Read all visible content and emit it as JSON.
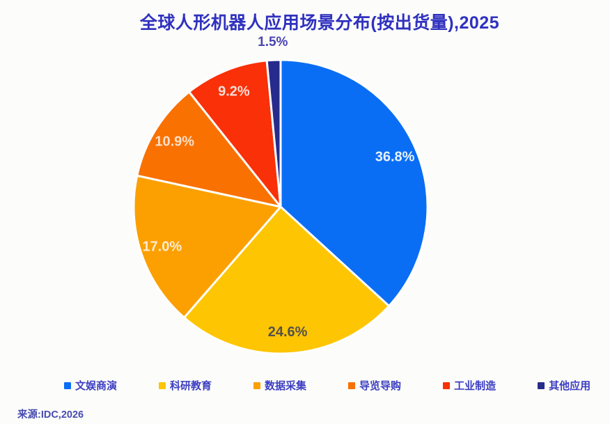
{
  "page": {
    "background_color": "#fcfcfa",
    "title_color": "#2f31bf",
    "legend_text_color": "#3c3ec2",
    "source_text": "来源:IDC,2026"
  },
  "chart_data": {
    "type": "pie",
    "title": "全球人形机器人应用场景分布(按出货量),2025",
    "start_angle_deg": 0,
    "direction": "clockwise",
    "legend_position": "bottom",
    "slice_border_color": "#ffffff",
    "slices": [
      {
        "label": "文娱商演",
        "value": 36.8,
        "display": "36.8%",
        "color": "#0a6ef5",
        "label_color": "#e9f2fc",
        "label_inside": true
      },
      {
        "label": "科研教育",
        "value": 24.6,
        "display": "24.6%",
        "color": "#fec502",
        "label_color": "#55514b",
        "label_inside": true
      },
      {
        "label": "数据采集",
        "value": 17.0,
        "display": "17.0%",
        "color": "#fba000",
        "label_color": "#fcebd0",
        "label_inside": true
      },
      {
        "label": "导览导购",
        "value": 10.9,
        "display": "10.9%",
        "color": "#f97100",
        "label_color": "#fcdfc8",
        "label_inside": true
      },
      {
        "label": "工业制造",
        "value": 9.2,
        "display": "9.2%",
        "color": "#f93008",
        "label_color": "#fbded6",
        "label_inside": true
      },
      {
        "label": "其他应用",
        "value": 1.5,
        "display": "1.5%",
        "color": "#272b8c",
        "label_color": "#4a44b0",
        "label_inside": false
      }
    ]
  }
}
